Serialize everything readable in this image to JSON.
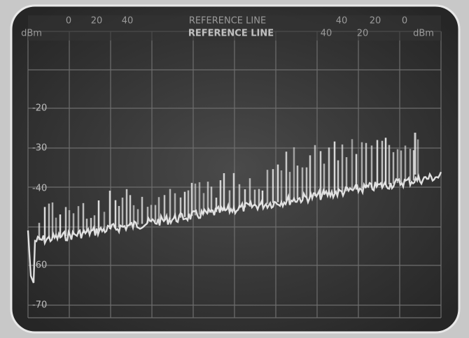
{
  "screen": {
    "top_scale": [
      "0",
      "20",
      "40",
      "REFERENCE LINE",
      "40",
      "20",
      "0"
    ],
    "second_row": [
      "dBm",
      "REFERENCE LINE",
      "40",
      "20",
      "dBm"
    ],
    "level_labels": [
      "-20",
      "-30",
      "-40",
      "-60",
      "-70"
    ]
  }
}
